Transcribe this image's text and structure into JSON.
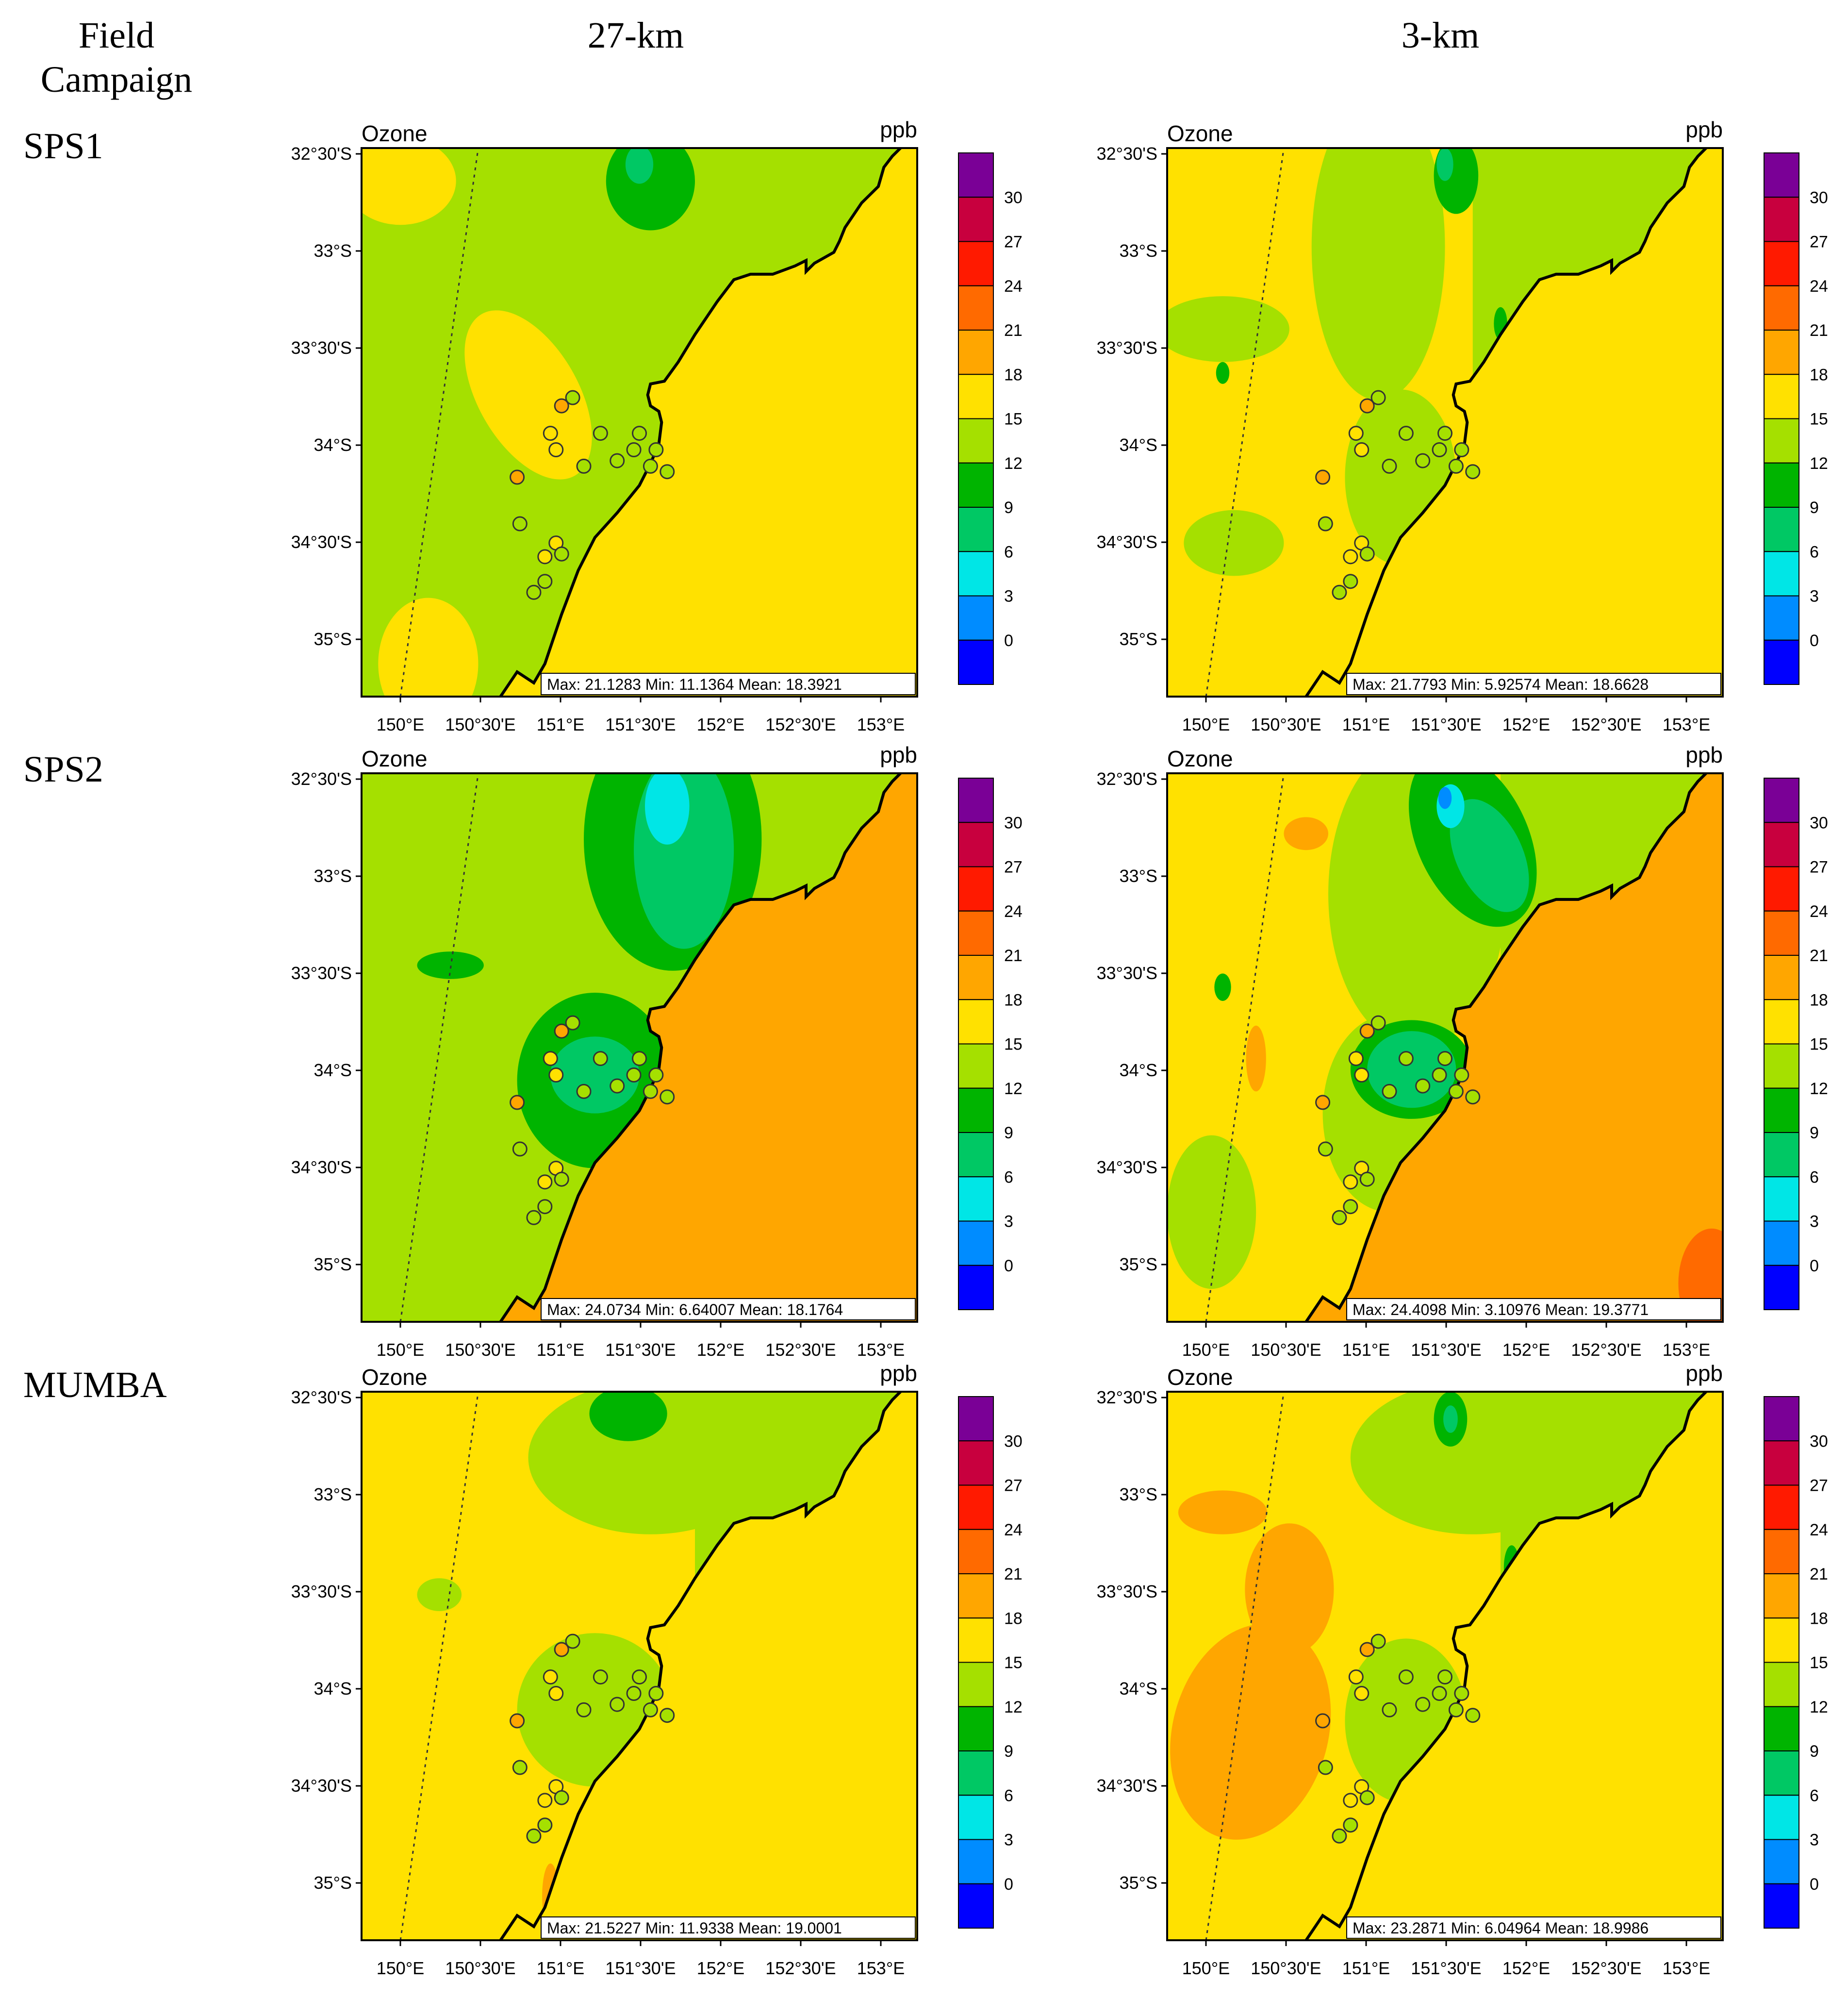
{
  "headers": {
    "field_campaign": "Field Campaign",
    "col_left": "27-km",
    "col_right": "3-km"
  },
  "rows": [
    "SPS1",
    "SPS2",
    "MUMBA"
  ],
  "colorbar": {
    "labels": [
      "30",
      "27",
      "24",
      "21",
      "18",
      "15",
      "12",
      "9",
      "6",
      "3",
      "0"
    ],
    "colors": [
      "#7a0096",
      "#c8003e",
      "#ff1a00",
      "#ff6a00",
      "#ffa600",
      "#ffe100",
      "#a5e000",
      "#00b400",
      "#00c864",
      "#00e6e6",
      "#008cff",
      "#0000ff"
    ]
  },
  "colors": {
    "land_fill": "#ffa600",
    "ocean_hi": "#ff6a00",
    "coast": "#000000",
    "circle_stroke": "#333333"
  },
  "chart_data": [
    {
      "type": "heatmap",
      "campaign": "SPS1",
      "resolution": "27-km",
      "title": "Ozone",
      "units": "ppb",
      "xticks": [
        "150°E",
        "150°30'E",
        "151°E",
        "151°30'E",
        "152°E",
        "152°30'E",
        "153°E"
      ],
      "yticks": [
        "32°30'S",
        "33°S",
        "33°30'S",
        "34°S",
        "34°30'S",
        "35°S"
      ],
      "xlim": [
        149.75,
        153.25
      ],
      "ylim": [
        -35.35,
        -32.5
      ],
      "stats": "Max: 21.1283  Min: 11.1364  Mean: 18.3921"
    },
    {
      "type": "heatmap",
      "campaign": "SPS1",
      "resolution": "3-km",
      "title": "Ozone",
      "units": "ppb",
      "xticks": [
        "150°E",
        "150°30'E",
        "151°E",
        "151°30'E",
        "152°E",
        "152°30'E",
        "153°E"
      ],
      "yticks": [
        "32°30'S",
        "33°S",
        "33°30'S",
        "34°S",
        "34°30'S",
        "35°S"
      ],
      "xlim": [
        149.75,
        153.25
      ],
      "ylim": [
        -35.35,
        -32.5
      ],
      "stats": "Max: 21.7793  Min: 5.92574  Mean: 18.6628"
    },
    {
      "type": "heatmap",
      "campaign": "SPS2",
      "resolution": "27-km",
      "title": "Ozone",
      "units": "ppb",
      "xticks": [
        "150°E",
        "150°30'E",
        "151°E",
        "151°30'E",
        "152°E",
        "152°30'E",
        "153°E"
      ],
      "yticks": [
        "32°30'S",
        "33°S",
        "33°30'S",
        "34°S",
        "34°30'S",
        "35°S"
      ],
      "xlim": [
        149.75,
        153.25
      ],
      "ylim": [
        -35.35,
        -32.5
      ],
      "stats": "Max: 24.0734  Min: 6.64007  Mean: 18.1764"
    },
    {
      "type": "heatmap",
      "campaign": "SPS2",
      "resolution": "3-km",
      "title": "Ozone",
      "units": "ppb",
      "xticks": [
        "150°E",
        "150°30'E",
        "151°E",
        "151°30'E",
        "152°E",
        "152°30'E",
        "153°E"
      ],
      "yticks": [
        "32°30'S",
        "33°S",
        "33°30'S",
        "34°S",
        "34°30'S",
        "35°S"
      ],
      "xlim": [
        149.75,
        153.25
      ],
      "ylim": [
        -35.35,
        -32.5
      ],
      "stats": "Max: 24.4098  Min: 3.10976  Mean: 19.3771"
    },
    {
      "type": "heatmap",
      "campaign": "MUMBA",
      "resolution": "27-km",
      "title": "Ozone",
      "units": "ppb",
      "xticks": [
        "150°E",
        "150°30'E",
        "151°E",
        "151°30'E",
        "152°E",
        "152°30'E",
        "153°E"
      ],
      "yticks": [
        "32°30'S",
        "33°S",
        "33°30'S",
        "34°S",
        "34°30'S",
        "35°S"
      ],
      "xlim": [
        149.75,
        153.25
      ],
      "ylim": [
        -35.35,
        -32.5
      ],
      "stats": "Max: 21.5227  Min: 11.9338  Mean: 19.0001"
    },
    {
      "type": "heatmap",
      "campaign": "MUMBA",
      "resolution": "3-km",
      "title": "Ozone",
      "units": "ppb",
      "xticks": [
        "150°E",
        "150°30'E",
        "151°E",
        "151°30'E",
        "152°E",
        "152°30'E",
        "153°E"
      ],
      "yticks": [
        "32°30'S",
        "33°S",
        "33°30'S",
        "34°S",
        "34°30'S",
        "35°S"
      ],
      "xlim": [
        149.75,
        153.25
      ],
      "ylim": [
        -35.35,
        -32.5
      ],
      "stats": "Max: 23.2871  Min: 6.04964  Mean: 18.9986"
    }
  ]
}
